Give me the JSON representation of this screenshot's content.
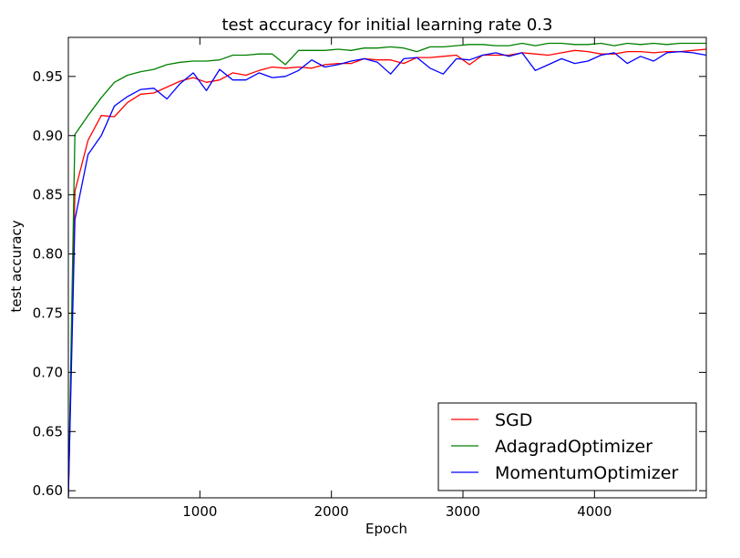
{
  "chart_data": {
    "type": "line",
    "title": "test accuracy for initial learning rate 0.3",
    "xlabel": "Epoch",
    "ylabel": "test accuracy",
    "xlim": [
      0,
      4850
    ],
    "ylim": [
      0.594,
      0.983
    ],
    "xticks": [
      1000,
      2000,
      3000,
      4000
    ],
    "yticks": [
      0.6,
      0.65,
      0.7,
      0.75,
      0.8,
      0.85,
      0.9,
      0.95
    ],
    "ytick_labels": [
      "0.60",
      "0.65",
      "0.70",
      "0.75",
      "0.80",
      "0.85",
      "0.90",
      "0.95"
    ],
    "xtick_labels": [
      "1000",
      "2000",
      "3000",
      "4000"
    ],
    "legend_position": "lower-right",
    "grid": false,
    "x": [
      0,
      50,
      150,
      250,
      350,
      450,
      550,
      650,
      750,
      850,
      950,
      1050,
      1150,
      1250,
      1350,
      1450,
      1550,
      1650,
      1750,
      1850,
      1950,
      2050,
      2150,
      2250,
      2350,
      2450,
      2550,
      2650,
      2750,
      2850,
      2950,
      3050,
      3150,
      3250,
      3350,
      3450,
      3550,
      3650,
      3750,
      3850,
      3950,
      4050,
      4150,
      4250,
      4350,
      4450,
      4550,
      4650,
      4750,
      4850
    ],
    "series": [
      {
        "name": "SGD",
        "color": "#ff0000",
        "values": [
          0.595,
          0.853,
          0.896,
          0.917,
          0.916,
          0.928,
          0.935,
          0.936,
          0.941,
          0.946,
          0.949,
          0.945,
          0.947,
          0.953,
          0.951,
          0.955,
          0.958,
          0.957,
          0.958,
          0.957,
          0.96,
          0.961,
          0.961,
          0.965,
          0.964,
          0.964,
          0.961,
          0.966,
          0.966,
          0.967,
          0.968,
          0.96,
          0.968,
          0.968,
          0.968,
          0.97,
          0.969,
          0.968,
          0.97,
          0.972,
          0.971,
          0.969,
          0.969,
          0.971,
          0.971,
          0.97,
          0.971,
          0.971,
          0.972,
          0.973
        ]
      },
      {
        "name": "AdagradOptimizer",
        "color": "#008000",
        "values": [
          0.595,
          0.901,
          0.917,
          0.932,
          0.945,
          0.951,
          0.954,
          0.956,
          0.96,
          0.962,
          0.963,
          0.963,
          0.964,
          0.968,
          0.968,
          0.969,
          0.969,
          0.96,
          0.972,
          0.972,
          0.972,
          0.973,
          0.972,
          0.974,
          0.974,
          0.975,
          0.974,
          0.971,
          0.975,
          0.975,
          0.976,
          0.977,
          0.977,
          0.976,
          0.976,
          0.978,
          0.976,
          0.978,
          0.978,
          0.977,
          0.977,
          0.978,
          0.976,
          0.978,
          0.977,
          0.978,
          0.977,
          0.978,
          0.978,
          0.978
        ]
      },
      {
        "name": "MomentumOptimizer",
        "color": "#0000ff",
        "values": [
          0.595,
          0.829,
          0.884,
          0.9,
          0.925,
          0.933,
          0.939,
          0.94,
          0.931,
          0.944,
          0.953,
          0.938,
          0.956,
          0.947,
          0.947,
          0.953,
          0.949,
          0.95,
          0.955,
          0.964,
          0.958,
          0.96,
          0.963,
          0.965,
          0.962,
          0.952,
          0.965,
          0.966,
          0.957,
          0.952,
          0.965,
          0.964,
          0.968,
          0.97,
          0.967,
          0.97,
          0.955,
          0.96,
          0.965,
          0.961,
          0.963,
          0.968,
          0.97,
          0.961,
          0.967,
          0.963,
          0.97,
          0.971,
          0.97,
          0.968
        ]
      }
    ]
  }
}
